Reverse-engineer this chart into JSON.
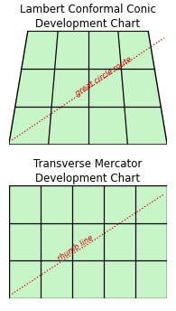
{
  "title1": "Lambert Conformal Conic\nDevelopment Chart",
  "title2": "Transverse Mercator\nDevelopment Chart",
  "bg_color": "#c8f5c8",
  "grid_color": "#000000",
  "line_color": "#cc0000",
  "title_fontsize": 8.5,
  "label1": "great circle route",
  "label2": "rhumb line",
  "fig_bg": "#ffffff",
  "lcc_bxl": 0.0,
  "lcc_bxr": 1.0,
  "lcc_txl": 0.12,
  "lcc_txr": 0.88,
  "lcc_cols": 4,
  "lcc_rows": 3,
  "tm_cols": 5,
  "tm_rows": 3
}
